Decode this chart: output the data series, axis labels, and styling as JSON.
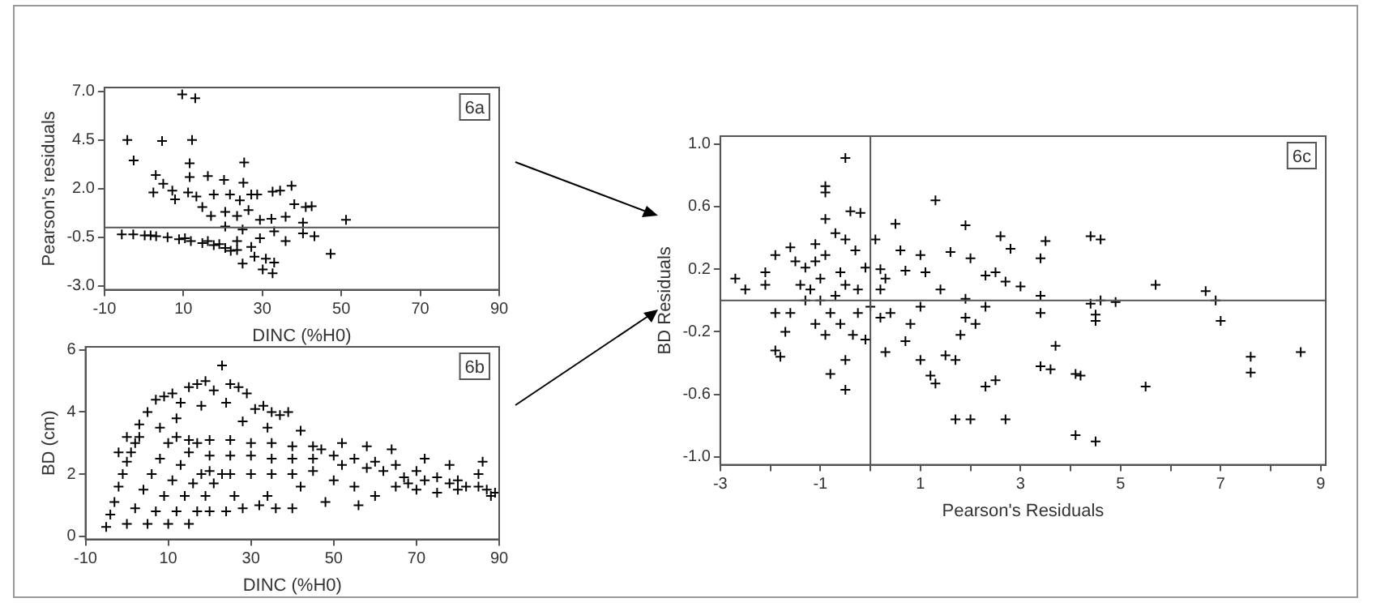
{
  "chart_data": [
    {
      "type": "scatter",
      "xlabel": "DINC (%H0)",
      "ylabel": "Pearson's residuals",
      "marker": "cross",
      "annotations": [
        "6a"
      ],
      "xlim": [
        -10,
        90
      ],
      "ylim": [
        -3.2,
        7.2
      ],
      "xticks": [
        -10,
        10,
        30,
        50,
        70,
        90
      ],
      "yticks": [
        {
          "value": -3,
          "label": "-3.0"
        },
        -0.5,
        {
          "value": 2,
          "label": "2.0"
        },
        4.5,
        {
          "value": 7,
          "label": "7.0"
        }
      ],
      "ref_lines": [
        {
          "axis": "y",
          "value": 0
        }
      ],
      "series": [
        {
          "color": "#000000",
          "x": [
            9.7,
            13,
            -4.2,
            4.6,
            12.2,
            -2.6,
            11.6,
            25.4,
            3,
            4.9,
            2.4,
            7.2,
            7.9,
            11.6,
            16.2,
            20.3,
            25.2,
            11.2,
            13.3,
            14.8,
            17.7,
            21.8,
            27.2,
            28.7,
            32.6,
            34.5,
            37.4,
            38.1,
            41,
            42.5,
            24.3,
            20.6,
            17,
            23.6,
            26.5,
            29.4,
            32.3,
            35.9,
            40.3,
            51.2,
            20.6,
            25,
            33,
            43.2,
            40.3,
            35.9,
            23.6,
            27.2,
            28,
            30.9,
            32.6,
            30.1,
            25,
            33,
            47.3,
            29.4,
            -5.6,
            -2.7,
            0.2,
            3.1,
            6,
            8.9,
            11.9,
            14.8,
            17.7,
            20.6,
            22,
            23.6,
            10.4,
            1.7,
            16.2,
            19.1
          ],
          "values": [
            6.85,
            6.65,
            4.5,
            4.45,
            4.5,
            3.45,
            3.3,
            3.35,
            2.7,
            2.25,
            1.8,
            1.9,
            1.45,
            2.6,
            2.65,
            2.45,
            2.3,
            1.8,
            1.6,
            1.05,
            1.7,
            1.7,
            1.7,
            1.7,
            1.85,
            1.9,
            2.15,
            1.2,
            1.05,
            1.1,
            1.4,
            0.8,
            0.6,
            0.6,
            0.9,
            0.4,
            0.45,
            0.55,
            0.25,
            0.4,
            0.05,
            -0.1,
            -0.2,
            -0.45,
            -0.3,
            -0.7,
            -0.7,
            -1,
            -1.5,
            -1.6,
            -2.35,
            -2.15,
            -1.85,
            -1.8,
            -1.35,
            -0.55,
            -0.35,
            -0.35,
            -0.4,
            -0.45,
            -0.5,
            -0.6,
            -0.7,
            -0.8,
            -0.9,
            -1.05,
            -1.2,
            -1.15,
            -0.55,
            -0.4,
            -0.7,
            -0.85
          ]
        }
      ]
    },
    {
      "type": "scatter",
      "xlabel": "DINC (%H0)",
      "ylabel": "BD (cm)",
      "marker": "cross",
      "annotations": [
        "6b"
      ],
      "xlim": [
        -10,
        90
      ],
      "ylim": [
        -0.1,
        6.1
      ],
      "xticks": [
        -10,
        10,
        30,
        50,
        70,
        90
      ],
      "yticks": [
        0,
        2,
        4,
        6
      ],
      "series": [
        {
          "color": "#000000",
          "x": [
            -5,
            -4,
            -3,
            -2,
            -1,
            0,
            1,
            2,
            3,
            0,
            2,
            4,
            6,
            8,
            10,
            12,
            5,
            7,
            9,
            11,
            13,
            15,
            17,
            10,
            12,
            14,
            16,
            18,
            20,
            15,
            17,
            19,
            21,
            23,
            15,
            20,
            25,
            30,
            35,
            40,
            45,
            20,
            25,
            30,
            35,
            40,
            45,
            25,
            30,
            35,
            40,
            45,
            -2,
            0,
            3,
            5,
            7,
            9,
            11,
            13,
            15,
            17,
            19,
            21,
            23,
            25,
            27,
            29,
            31,
            33,
            35,
            37,
            39,
            12,
            18,
            24,
            28,
            34,
            42,
            8,
            20,
            24,
            28,
            32,
            36,
            40,
            26,
            34,
            42,
            47,
            50,
            52,
            55,
            58,
            60,
            62,
            65,
            67,
            70,
            72,
            75,
            78,
            80,
            82,
            85,
            87,
            89,
            50,
            55,
            60,
            65,
            70,
            75,
            80,
            85,
            88,
            52,
            58,
            64,
            72,
            78,
            86,
            48,
            56,
            68
          ],
          "values": [
            0.3,
            0.7,
            1.1,
            1.6,
            2,
            2.4,
            2.7,
            3,
            3.2,
            0.4,
            0.9,
            1.5,
            2,
            2.5,
            3,
            3.2,
            0.4,
            0.8,
            1.3,
            1.8,
            2.3,
            2.7,
            3,
            0.4,
            0.8,
            1.3,
            1.7,
            2,
            2.1,
            0.4,
            0.8,
            1.3,
            1.7,
            2,
            3.1,
            3.1,
            3.1,
            3,
            3,
            2.9,
            2.9,
            2.6,
            2.6,
            2.6,
            2.5,
            2.5,
            2.5,
            2,
            2,
            2,
            2,
            2.1,
            2.7,
            3.2,
            3.6,
            4,
            4.4,
            4.5,
            4.6,
            4.3,
            4.8,
            4.9,
            5,
            4.7,
            5.5,
            4.9,
            4.8,
            4.6,
            4.1,
            4.2,
            4,
            3.9,
            4,
            3.8,
            4.2,
            4.3,
            3.7,
            3.5,
            3.4,
            3.5,
            0.8,
            0.8,
            0.9,
            1,
            0.9,
            0.9,
            1.3,
            1.3,
            1.6,
            2.8,
            2.6,
            2.3,
            2.5,
            2.2,
            2.4,
            2.1,
            2.3,
            1.9,
            2.1,
            1.8,
            1.9,
            1.7,
            1.8,
            1.6,
            1.6,
            1.5,
            1.4,
            1.8,
            1.6,
            1.3,
            1.6,
            1.5,
            1.4,
            1.5,
            2,
            1.3,
            3,
            2.9,
            2.8,
            2.5,
            2.3,
            2.4,
            1.1,
            1,
            1.7
          ]
        }
      ]
    },
    {
      "type": "scatter",
      "xlabel": "Pearson's Residuals",
      "ylabel": "BD Residuals",
      "marker": "cross",
      "annotations": [
        "6c"
      ],
      "xlim": [
        -3,
        9.1
      ],
      "ylim": [
        -1.05,
        1.05
      ],
      "xticks": [
        -3,
        {
          "value": -2,
          "label": null
        },
        -1,
        {
          "value": 0,
          "label": null
        },
        1,
        {
          "value": 2,
          "label": null
        },
        3,
        {
          "value": 4,
          "label": null
        },
        5,
        {
          "value": 6,
          "label": null
        },
        7,
        {
          "value": 8,
          "label": null
        },
        9
      ],
      "yticks": [
        {
          "value": -1,
          "label": "-1.0"
        },
        -0.6,
        -0.2,
        0.2,
        0.6,
        {
          "value": 1,
          "label": "1.0"
        }
      ],
      "ref_lines": [
        {
          "axis": "x",
          "value": 0
        },
        {
          "axis": "y",
          "value": 0
        }
      ],
      "series": [
        {
          "color": "#000000",
          "x": [
            -0.5,
            -0.9,
            1.3,
            0.5,
            1.9,
            2.6,
            3.5,
            4.4,
            4.6,
            2.8,
            3.4,
            5.7,
            6.7,
            6.9,
            7,
            7.6,
            7.6,
            8.6,
            5.5,
            4.1,
            4.2,
            3.7,
            3.4,
            3.6,
            4.1,
            4.5,
            1.7,
            2,
            2.7,
            2.3,
            2.5,
            1.3,
            1.2,
            -0.5,
            -0.8,
            -1.9,
            -1.8,
            -2.7,
            -2.5,
            -0.5,
            4.4,
            4.6,
            4.9,
            3.4,
            4.5,
            4.5,
            3.4,
            3,
            2.7,
            2.5,
            2.3,
            1.7,
            1.5,
            1,
            0.3,
            0.7,
            1.8,
            2.1,
            1.4,
            1.9,
            1,
            0.6,
            0.1,
            1.6,
            2,
            0.3,
            0.7,
            1.1,
            1,
            0.4,
            0.8,
            0.2,
            2.3,
            1.9,
            -0.7,
            -0.4,
            -0.2,
            -0.9,
            -1.1,
            -1.3,
            -1.5,
            -1.6,
            -1.9,
            -2.1,
            -2.1,
            -1.4,
            -1.2,
            -1,
            -0.8,
            -0.6,
            -0.35,
            -0.25,
            -0.1,
            -0.3,
            -0.5,
            -0.9,
            -0.6,
            -0.5,
            -0.7,
            -1,
            -1.1,
            -1.3,
            -1.6,
            -1.7,
            -1.9,
            -0.1,
            -0.9,
            -1.1,
            -0.25,
            -0.9,
            0.2,
            0.2,
            0
          ],
          "values": [
            0.91,
            0.73,
            0.64,
            0.49,
            0.48,
            0.41,
            0.38,
            0.41,
            0.39,
            0.33,
            0.27,
            0.1,
            0.06,
            0,
            -0.13,
            -0.36,
            -0.46,
            -0.33,
            -0.55,
            -0.47,
            -0.48,
            -0.29,
            -0.42,
            -0.44,
            -0.86,
            -0.9,
            -0.76,
            -0.76,
            -0.76,
            -0.55,
            -0.51,
            -0.53,
            -0.48,
            -0.57,
            -0.47,
            -0.32,
            -0.36,
            0.14,
            0.07,
            -0.38,
            -0.02,
            0,
            -0.01,
            -0.08,
            -0.09,
            -0.13,
            0.03,
            0.09,
            0.12,
            0.18,
            0.16,
            -0.38,
            -0.35,
            -0.38,
            -0.33,
            -0.26,
            -0.22,
            -0.15,
            0.07,
            0.01,
            0.29,
            0.32,
            0.39,
            0.31,
            0.27,
            0.14,
            0.19,
            0.18,
            -0.04,
            -0.08,
            -0.15,
            -0.11,
            -0.04,
            -0.11,
            0.43,
            0.57,
            0.56,
            0.52,
            0.36,
            0.21,
            0.25,
            0.34,
            0.29,
            0.18,
            0.1,
            0.1,
            0.07,
            0,
            -0.08,
            -0.15,
            -0.22,
            0.07,
            0.21,
            0.32,
            0.39,
            0.29,
            0.18,
            0.1,
            0.03,
            0.14,
            0.25,
            0,
            -0.08,
            -0.2,
            -0.08,
            -0.25,
            -0.22,
            -0.15,
            -0.08,
            0.69,
            0.2,
            0.07,
            -0.04
          ]
        }
      ]
    }
  ]
}
